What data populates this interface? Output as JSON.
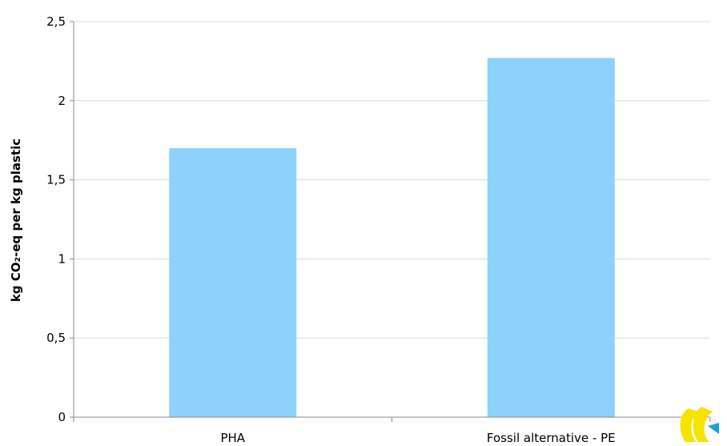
{
  "chart_data": {
    "type": "bar",
    "title": "",
    "xlabel": "",
    "ylabel": "kg CO₂-eq per kg plastic",
    "categories": [
      "PHA",
      "Fossil alternative - PE"
    ],
    "values": [
      1.7,
      2.27
    ],
    "ylim": [
      0,
      2.5
    ],
    "yticks": [
      "0",
      "0,5",
      "1",
      "1,5",
      "2",
      "2,5"
    ],
    "grid": true,
    "legend": "none",
    "colors": {
      "bar": "#8cd2fc",
      "grid": "#d9d9d9",
      "axis": "#888888"
    }
  },
  "logo": {
    "icon": "organization-logo-icon",
    "colors": [
      "#f5e400",
      "#1aa3d9"
    ]
  }
}
